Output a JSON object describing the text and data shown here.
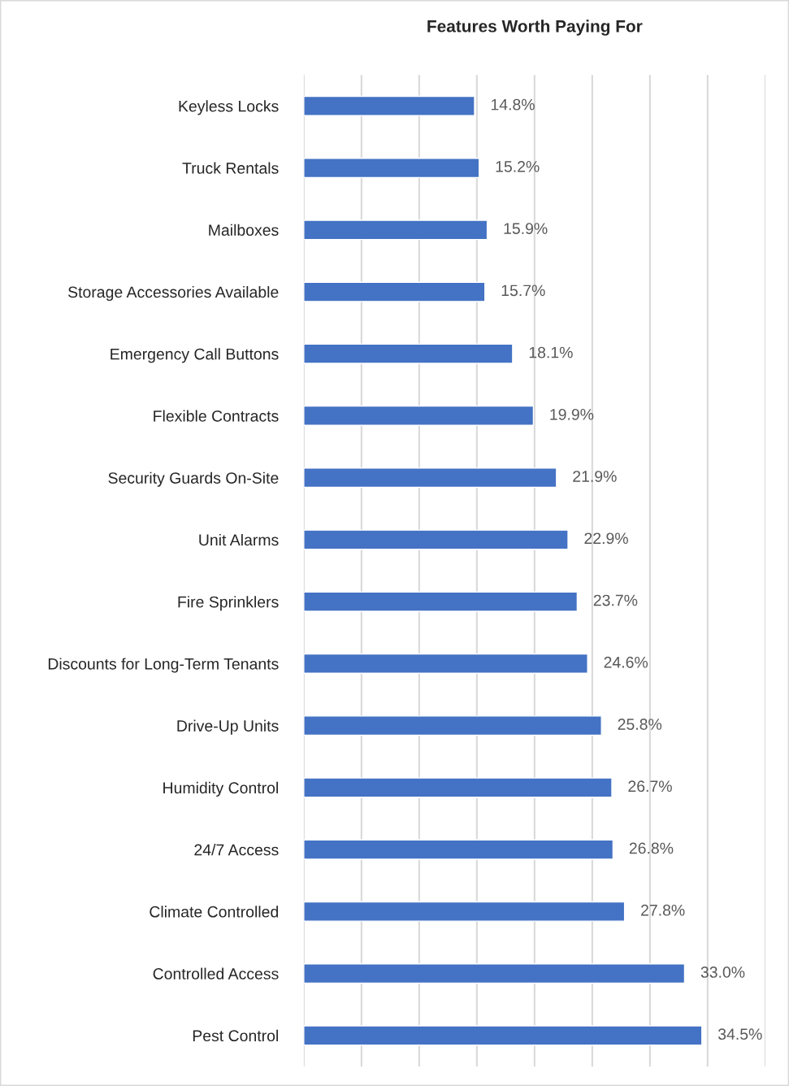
{
  "chart_data": {
    "type": "bar",
    "orientation": "horizontal",
    "title": "Features Worth Paying For",
    "categories": [
      "Keyless Locks",
      "Truck Rentals",
      "Mailboxes",
      "Storage Accessories Available",
      "Emergency Call Buttons",
      "Flexible Contracts",
      "Security Guards On-Site",
      "Unit Alarms",
      "Fire Sprinklers",
      "Discounts for Long-Term Tenants",
      "Drive-Up Units",
      "Humidity Control",
      "24/7 Access",
      "Climate Controlled",
      "Controlled Access",
      "Pest Control"
    ],
    "values": [
      14.8,
      15.2,
      15.9,
      15.7,
      18.1,
      19.9,
      21.9,
      22.9,
      23.7,
      24.6,
      25.8,
      26.7,
      26.8,
      27.8,
      33.0,
      34.5
    ],
    "value_labels": [
      "14.8%",
      "15.2%",
      "15.9%",
      "15.7%",
      "18.1%",
      "19.9%",
      "21.9%",
      "22.9%",
      "23.7%",
      "24.6%",
      "25.8%",
      "26.7%",
      "26.8%",
      "27.8%",
      "33.0%",
      "34.5%"
    ],
    "color": "#4472c4",
    "xlim": [
      0,
      40
    ],
    "xticks": [
      {
        "value": 0,
        "label": null
      },
      {
        "value": 5,
        "label": null
      },
      {
        "value": 10,
        "label": null
      },
      {
        "value": 15,
        "label": null
      },
      {
        "value": 20,
        "label": null
      },
      {
        "value": 25,
        "label": null
      },
      {
        "value": 30,
        "label": null
      },
      {
        "value": 35,
        "label": null
      },
      {
        "value": 40,
        "label": null
      }
    ],
    "grid": "x",
    "tick_labels": "y"
  }
}
